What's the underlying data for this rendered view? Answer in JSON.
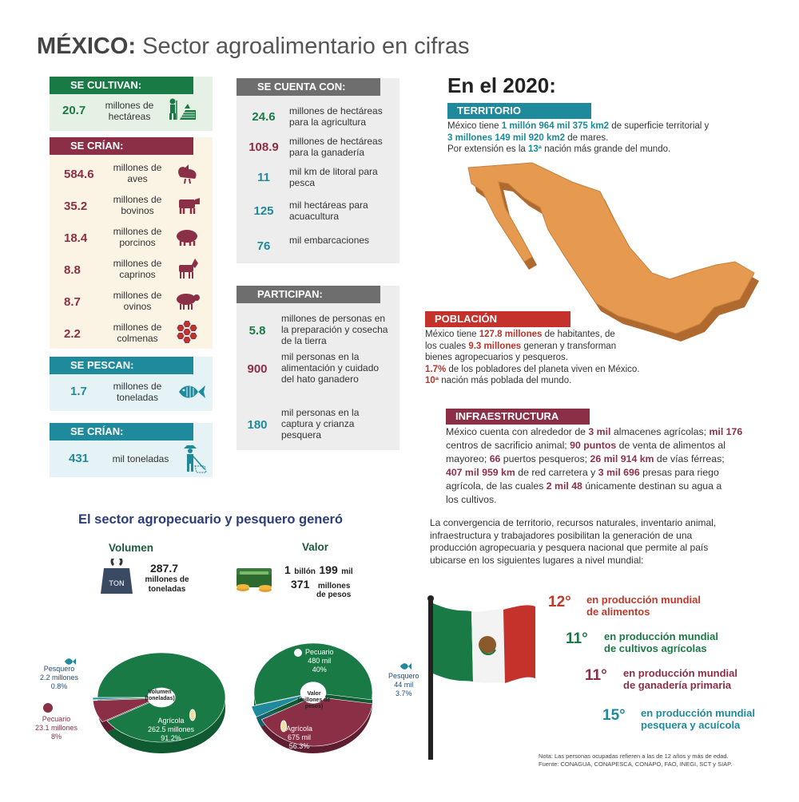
{
  "title": {
    "bold": "MÉXICO:",
    "rest": "Sector agroalimentario en cifras"
  },
  "colors": {
    "green": "#1a7a45",
    "maroon": "#8a2f45",
    "teal": "#1f8a9c",
    "gray": "#6e6e6e",
    "red": "#c4322b",
    "orange": "#e59a50"
  },
  "cultivan": {
    "header": "SE CULTIVAN:",
    "value": "20.7",
    "text": "millones de hectáreas",
    "icon": "farmer-field-icon"
  },
  "crian": {
    "header": "SE CRÍAN:",
    "items": [
      {
        "value": "584.6",
        "text": "millones de aves",
        "icon": "chicken-icon"
      },
      {
        "value": "35.2",
        "text": "millones de bovinos",
        "icon": "cow-icon"
      },
      {
        "value": "18.4",
        "text": "millones de porcinos",
        "icon": "pig-icon"
      },
      {
        "value": "8.8",
        "text": "millones de caprinos",
        "icon": "goat-icon"
      },
      {
        "value": "8.7",
        "text": "millones de ovinos",
        "icon": "sheep-icon"
      },
      {
        "value": "2.2",
        "text": "millones de colmenas",
        "icon": "honeycomb-icon"
      }
    ]
  },
  "pescan": {
    "header": "SE PESCAN:",
    "value": "1.7",
    "text": "millones de toneladas",
    "icon": "fish-icon"
  },
  "crian2": {
    "header": "SE CRÍAN:",
    "value": "431",
    "text": "mil toneladas",
    "icon": "fisherman-icon"
  },
  "cuenta": {
    "header": "SE CUENTA CON:",
    "items": [
      {
        "value": "24.6",
        "text": "millones de hectáreas para la agricultura",
        "color": "green"
      },
      {
        "value": "108.9",
        "text": "millones de hectáreas para la ganadería",
        "color": "maroon"
      },
      {
        "value": "11",
        "text": "mil km de litoral para pesca",
        "color": "teal"
      },
      {
        "value": "125",
        "text": "mil hectáreas para acuacultura",
        "color": "teal"
      },
      {
        "value": "76",
        "text": "mil embarcaciones",
        "color": "teal"
      }
    ]
  },
  "participan": {
    "header": "PARTICIPAN:",
    "items": [
      {
        "value": "5.8",
        "text": "millones de personas en la preparación y cosecha de la tierra",
        "color": "green"
      },
      {
        "value": "900",
        "text": "mil personas en la alimentación y cuidado del hato ganadero",
        "color": "maroon"
      },
      {
        "value": "180",
        "text": "mil personas en la captura y crianza pesquera",
        "color": "teal"
      }
    ]
  },
  "year": {
    "title": "En el 2020:"
  },
  "territorio": {
    "header": "TERRITORIO",
    "l1a": "México tiene ",
    "l1b": "1 millón 964 mil 375 km2",
    "l1c": " de superficie territorial  y",
    "l2a": "3 millones 149 mil 920 km2",
    "l2b": " de mares.",
    "l3a": "Por extensión es la ",
    "l3b": "13ª",
    "l3c": " nación más grande del mundo."
  },
  "poblacion": {
    "header": "POBLACIÓN",
    "l1a": "México tiene ",
    "l1b": "127.8 millones",
    "l1c": " de habitantes, de",
    "l2a": "los cuales ",
    "l2b": "9.3 millones",
    "l2c": " generan y transforman",
    "l3": "bienes agropecuarios y pesqueros.",
    "l4a": "1.7%",
    "l4b": " de los pobladores del planeta viven en México.",
    "l5a": "10ª",
    "l5b": " nación más poblada del mundo."
  },
  "infra": {
    "header": "INFRAESTRUCTURA",
    "l1a": "México cuenta con alrededor de ",
    "l1b": "3 mil",
    "l1c": " almacenes agrícolas; ",
    "l1d": "mil 176",
    "l2a": "centros de sacrificio animal; ",
    "l2b": "90 puntos",
    "l2c": " de venta de alimentos al",
    "l3a": "mayoreo; ",
    "l3b": "66",
    "l3c": " puertos pesqueros; ",
    "l3d": "26 mil 914  km",
    "l3e": " de vías férreas;",
    "l4a": "407 mil 959 km",
    "l4b": " de red carretera y ",
    "l4c": "3 mil 696",
    "l4d": " presas para riego",
    "l5a": "agrícola, de las cuales ",
    "l5b": "2 mil 48",
    "l5c": " únicamente destinan su agua a",
    "l6": "los cultivos."
  },
  "convergencia": {
    "l1": "La convergencia de territorio, recursos naturales, inventario animal,",
    "l2": "infraestructura y trabajadores posibilitan la generación de una",
    "l3": "producción agropecuaria y pesquera nacional que permite al país",
    "l4": "ubicarse en los siguientes lugares a nivel mundial:"
  },
  "rankings": [
    {
      "rank": "12°",
      "line1": "en producción mundial",
      "line2": "de alimentos",
      "color": "#c0392b"
    },
    {
      "rank": "11°",
      "line1": "en producción mundial",
      "line2": "de cultivos agrícolas",
      "color": "#1a7a45"
    },
    {
      "rank": "11°",
      "line1": "en producción mundial",
      "line2": "de ganadería primaria",
      "color": "#8a2f45"
    },
    {
      "rank": "15°",
      "line1": "en producción mundial",
      "line2": "pesquera y acuícola",
      "color": "#1f8a9c"
    }
  ],
  "generated": {
    "title": "El sector agropecuario y pesquero generó",
    "vol_label": "Volumen",
    "val_label": "Valor",
    "ton_icon_text": "TON",
    "vol_num": "287.7",
    "vol_unit1": "millones de",
    "vol_unit2": "toneladas",
    "val_a": "1",
    "val_b": "billón",
    "val_c": "199",
    "val_d": "mil",
    "val_e": "371",
    "val_f": "millones",
    "val_g": "de pesos"
  },
  "chart_data": [
    {
      "type": "pie",
      "title": "Volumen (toneladas)",
      "slices": [
        {
          "name": "Agrícola",
          "value": 262.5,
          "label": "262.5 millones",
          "pct": "91.2%"
        },
        {
          "name": "Pecuario",
          "value": 23.1,
          "label": "23.1 millones",
          "pct": "8%"
        },
        {
          "name": "Pesquero",
          "value": 2.2,
          "label": "2.2 millones",
          "pct": "0.8%"
        }
      ]
    },
    {
      "type": "pie",
      "title": "Valor (millones de pesos)",
      "slices": [
        {
          "name": "Agrícola",
          "value": 675,
          "label": "675 mil",
          "pct": "56.3%"
        },
        {
          "name": "Pecuario",
          "value": 480,
          "label": "480 mil",
          "pct": "40%"
        },
        {
          "name": "Pesquero",
          "value": 44,
          "label": "44 mil",
          "pct": "3.7%"
        }
      ]
    }
  ],
  "pie_text": {
    "vol_c1": "Volumen",
    "vol_c2": "(toneladas)",
    "val_c1": "Valor",
    "val_c2": "(millones de",
    "val_c3": "pesos)"
  },
  "note": {
    "l1": "Nota: Las personas ocupadas refieren a las de 12 años y más de edad.",
    "l2": "Fuente: CONAGUA, CONAPESCA, CONAPO, FAO, INEGI, SCT y SIAP."
  }
}
